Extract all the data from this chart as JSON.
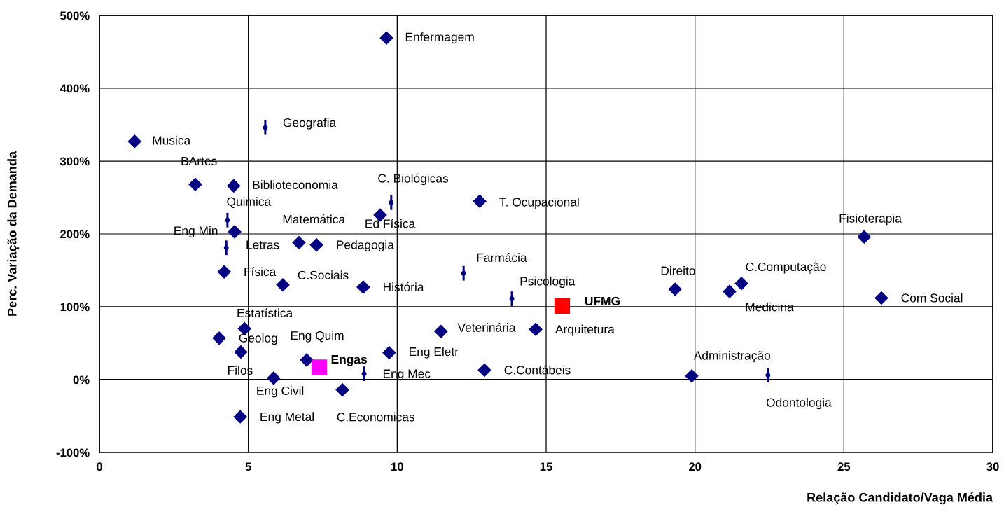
{
  "chart_data": {
    "type": "scatter",
    "xlabel": "Relação Candidato/Vaga Média",
    "ylabel": "Perc. Variação da Demanda",
    "xlim": [
      0,
      30
    ],
    "xticks": [
      0,
      5,
      10,
      15,
      20,
      25,
      30
    ],
    "ylim": [
      -100,
      500
    ],
    "yticks": [
      {
        "value": -100,
        "label": "-100%"
      },
      {
        "value": 0,
        "label": "0%"
      },
      {
        "value": 100,
        "label": "100%"
      },
      {
        "value": 200,
        "label": "200%"
      },
      {
        "value": 300,
        "label": "300%"
      },
      {
        "value": 400,
        "label": "400%"
      },
      {
        "value": 500,
        "label": "500%"
      }
    ],
    "grid": true,
    "legend": false,
    "ref_lines": [
      {
        "axis": "y",
        "value": 0,
        "color": "#000000"
      }
    ],
    "series": [
      {
        "color": "#000080",
        "marker": "diamond",
        "x": [
          9.64,
          1.18,
          3.22,
          4.51,
          12.77,
          9.43,
          4.54,
          6.7,
          7.29,
          25.68,
          4.19,
          6.16,
          8.86,
          19.33,
          21.56,
          21.16,
          26.26,
          4.87,
          11.47,
          14.65,
          4.02,
          4.75,
          9.73,
          6.96,
          12.93,
          19.89,
          5.85,
          8.16,
          4.73
        ],
        "values": [
          469,
          327,
          268,
          266,
          245,
          226,
          203,
          188,
          185,
          196,
          148,
          130,
          127,
          124,
          132,
          121,
          112,
          70,
          66,
          69,
          57,
          38,
          37,
          27,
          13,
          5,
          2,
          -14,
          -51
        ]
      },
      {
        "color": "#000080",
        "marker": "circle",
        "errors": [
          10,
          10,
          10,
          10,
          10,
          10,
          10,
          10
        ],
        "x": [
          5.57,
          9.8,
          4.3,
          4.26,
          12.23,
          13.85,
          8.89,
          22.45
        ],
        "values": [
          346,
          243,
          219,
          181,
          146,
          111,
          8,
          6
        ]
      },
      {
        "color": "#ff0000",
        "marker": "square",
        "x": [
          15.54
        ],
        "values": [
          101
        ]
      },
      {
        "color": "#ff00ff",
        "marker": "square",
        "x": [
          7.38
        ],
        "values": [
          17
        ]
      }
    ],
    "annotations": [
      {
        "text": "Enfermagem",
        "x": 9.64,
        "y": 469
      },
      {
        "text": "Musica",
        "x": 1.18,
        "y": 327
      },
      {
        "text": "BArtes",
        "x": 3.22,
        "y": 268
      },
      {
        "text": "Biblioteconomia",
        "x": 4.51,
        "y": 266
      },
      {
        "text": "T. Ocupacional",
        "x": 12.77,
        "y": 245
      },
      {
        "text": "Ed Física",
        "x": 9.43,
        "y": 226
      },
      {
        "text": "Eng Min",
        "x": 4.54,
        "y": 203
      },
      {
        "text": "Matemática",
        "x": 6.7,
        "y": 188
      },
      {
        "text": "Pedagogia",
        "x": 7.29,
        "y": 185
      },
      {
        "text": "Fisioterapia",
        "x": 25.68,
        "y": 196
      },
      {
        "text": "Física",
        "x": 4.19,
        "y": 148
      },
      {
        "text": "C.Sociais",
        "x": 6.16,
        "y": 130
      },
      {
        "text": "História",
        "x": 8.86,
        "y": 127
      },
      {
        "text": "Direito",
        "x": 19.33,
        "y": 124
      },
      {
        "text": "C.Computação",
        "x": 21.56,
        "y": 132
      },
      {
        "text": "Medicina",
        "x": 21.16,
        "y": 121
      },
      {
        "text": "Com Social",
        "x": 26.26,
        "y": 112
      },
      {
        "text": "Estatística",
        "x": 4.87,
        "y": 70
      },
      {
        "text": "Veterinária",
        "x": 11.47,
        "y": 66
      },
      {
        "text": "Arquitetura",
        "x": 14.65,
        "y": 69
      },
      {
        "text": "Geolog",
        "x": 4.02,
        "y": 57
      },
      {
        "text": "Filos",
        "x": 4.75,
        "y": 38
      },
      {
        "text": "Eng Eletr",
        "x": 9.73,
        "y": 37
      },
      {
        "text": "Eng Quim",
        "x": 6.96,
        "y": 27
      },
      {
        "text": "C.Contábeis",
        "x": 12.93,
        "y": 13
      },
      {
        "text": "Administração",
        "x": 19.89,
        "y": 5
      },
      {
        "text": "Eng Civil",
        "x": 5.85,
        "y": 2
      },
      {
        "text": "C.Economicas",
        "x": 8.16,
        "y": -14
      },
      {
        "text": "Eng Metal",
        "x": 4.73,
        "y": -51
      },
      {
        "text": "Geografia",
        "x": 5.57,
        "y": 346
      },
      {
        "text": "C. Biológicas",
        "x": 9.8,
        "y": 243
      },
      {
        "text": "Quimica",
        "x": 4.3,
        "y": 219
      },
      {
        "text": "Letras",
        "x": 4.26,
        "y": 181
      },
      {
        "text": "Farmácia",
        "x": 12.23,
        "y": 146
      },
      {
        "text": "Psicologia",
        "x": 13.85,
        "y": 111
      },
      {
        "text": "Eng Mec",
        "x": 8.89,
        "y": 8
      },
      {
        "text": "Odontologia",
        "x": 22.45,
        "y": 6
      },
      {
        "text": "UFMG",
        "x": 15.54,
        "y": 101
      },
      {
        "text": "Engas",
        "x": 7.38,
        "y": 17
      }
    ]
  }
}
